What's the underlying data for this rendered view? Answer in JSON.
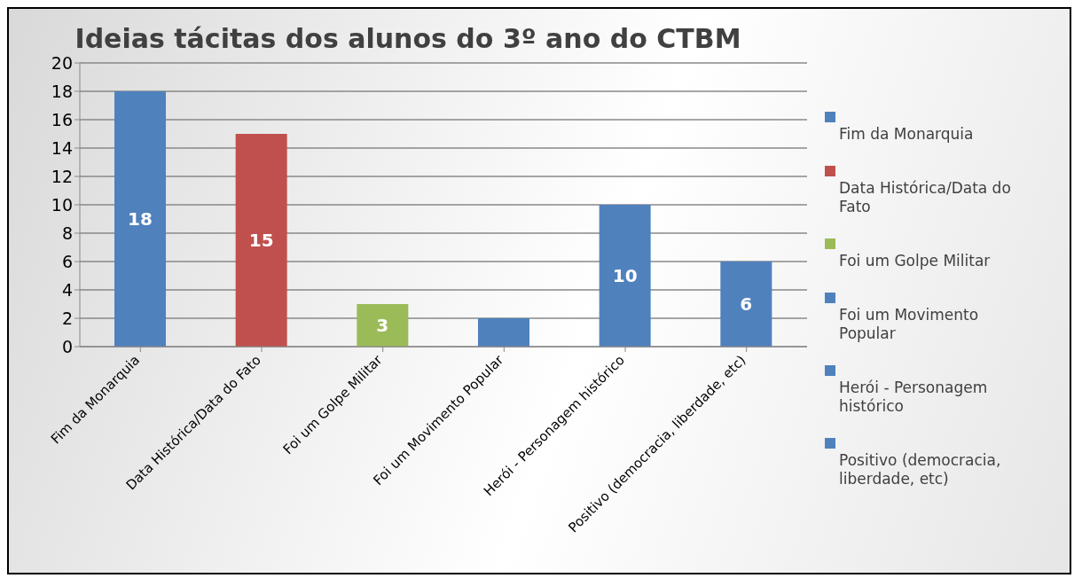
{
  "chart_data": {
    "type": "bar",
    "title": "Ideias tácitas dos alunos do 3º ano do CTBM",
    "categories": [
      "Fim da Monarquia",
      "Data Histórica/Data do Fato",
      "Foi um Golpe Militar",
      "Foi um Movimento Popular",
      "Herói - Personagem histórico",
      "Positivo (democracia, liberdade, etc)"
    ],
    "stacked": true,
    "series": [
      {
        "name": "Fim da Monarquia",
        "color": "#4f81bd",
        "values": [
          18,
          null,
          null,
          null,
          null,
          null
        ],
        "value_labels": [
          "18",
          null,
          null,
          null,
          null,
          null
        ]
      },
      {
        "name": "Data Histórica/Data do Fato",
        "color": "#c0504d",
        "values": [
          null,
          15,
          null,
          null,
          null,
          null
        ],
        "value_labels": [
          null,
          "15",
          null,
          null,
          null,
          null
        ]
      },
      {
        "name": "Foi um Golpe Militar",
        "color": "#9bbb59",
        "values": [
          null,
          null,
          3,
          null,
          null,
          null
        ],
        "value_labels": [
          null,
          null,
          "3",
          null,
          null,
          null
        ]
      },
      {
        "name": "Foi um Movimento Popular",
        "color": "#4f81bd",
        "values": [
          null,
          null,
          null,
          2,
          null,
          null
        ]
      },
      {
        "name": "Herói - Personagem histórico",
        "color": "#4f81bd",
        "values": [
          null,
          null,
          null,
          null,
          10,
          null
        ],
        "value_labels": [
          null,
          null,
          null,
          null,
          "10",
          null
        ]
      },
      {
        "name": "Positivo (democracia, liberdade, etc)",
        "color": "#4f81bd",
        "values": [
          null,
          null,
          null,
          null,
          null,
          6
        ],
        "value_labels": [
          null,
          null,
          null,
          null,
          null,
          "6"
        ]
      }
    ],
    "ylim": [
      0,
      20
    ],
    "yticks": [
      0,
      2,
      4,
      6,
      8,
      10,
      12,
      14,
      16,
      18,
      20
    ],
    "grid": "y",
    "legend": "right"
  }
}
